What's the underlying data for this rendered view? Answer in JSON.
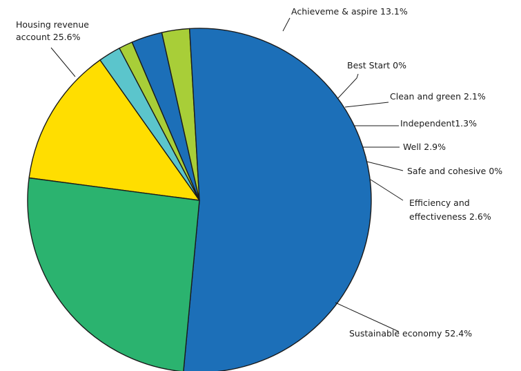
{
  "chart_data": {
    "type": "pie",
    "slices": [
      {
        "label": "Achieveme & aspire",
        "value": 13.1,
        "color": "#ffde00",
        "label_text": [
          "Achieveme & aspire 13.1%"
        ]
      },
      {
        "label": "Best Start",
        "value": 0,
        "color": "#ffffff",
        "label_text": [
          "Best Start 0%"
        ]
      },
      {
        "label": "Clean and green",
        "value": 2.1,
        "color": "#5bc5cc",
        "label_text": [
          "Clean and green 2.1%"
        ]
      },
      {
        "label": "Independent",
        "value": 1.3,
        "color": "#a8ce38",
        "label_text": [
          "Independent1.3%"
        ]
      },
      {
        "label": "Well",
        "value": 2.9,
        "color": "#1c6fb8",
        "label_text": [
          "Well 2.9%"
        ]
      },
      {
        "label": "Safe and cohesive",
        "value": 0,
        "color": "#ffffff",
        "label_text": [
          "Safe and cohesive 0%"
        ]
      },
      {
        "label": "Efficiency and effectiveness",
        "value": 2.6,
        "color": "#a8ce38",
        "label_text": [
          "Efficiency and",
          "effectiveness 2.6%"
        ]
      },
      {
        "label": "Sustainable economy",
        "value": 52.4,
        "color": "#1c6fb8",
        "label_text": [
          "Sustainable economy 52.4%"
        ]
      },
      {
        "label": "Housing revenue account",
        "value": 25.6,
        "color": "#2bb36f",
        "label_text": [
          "Housing revenue",
          "account 25.6%"
        ]
      }
    ]
  }
}
